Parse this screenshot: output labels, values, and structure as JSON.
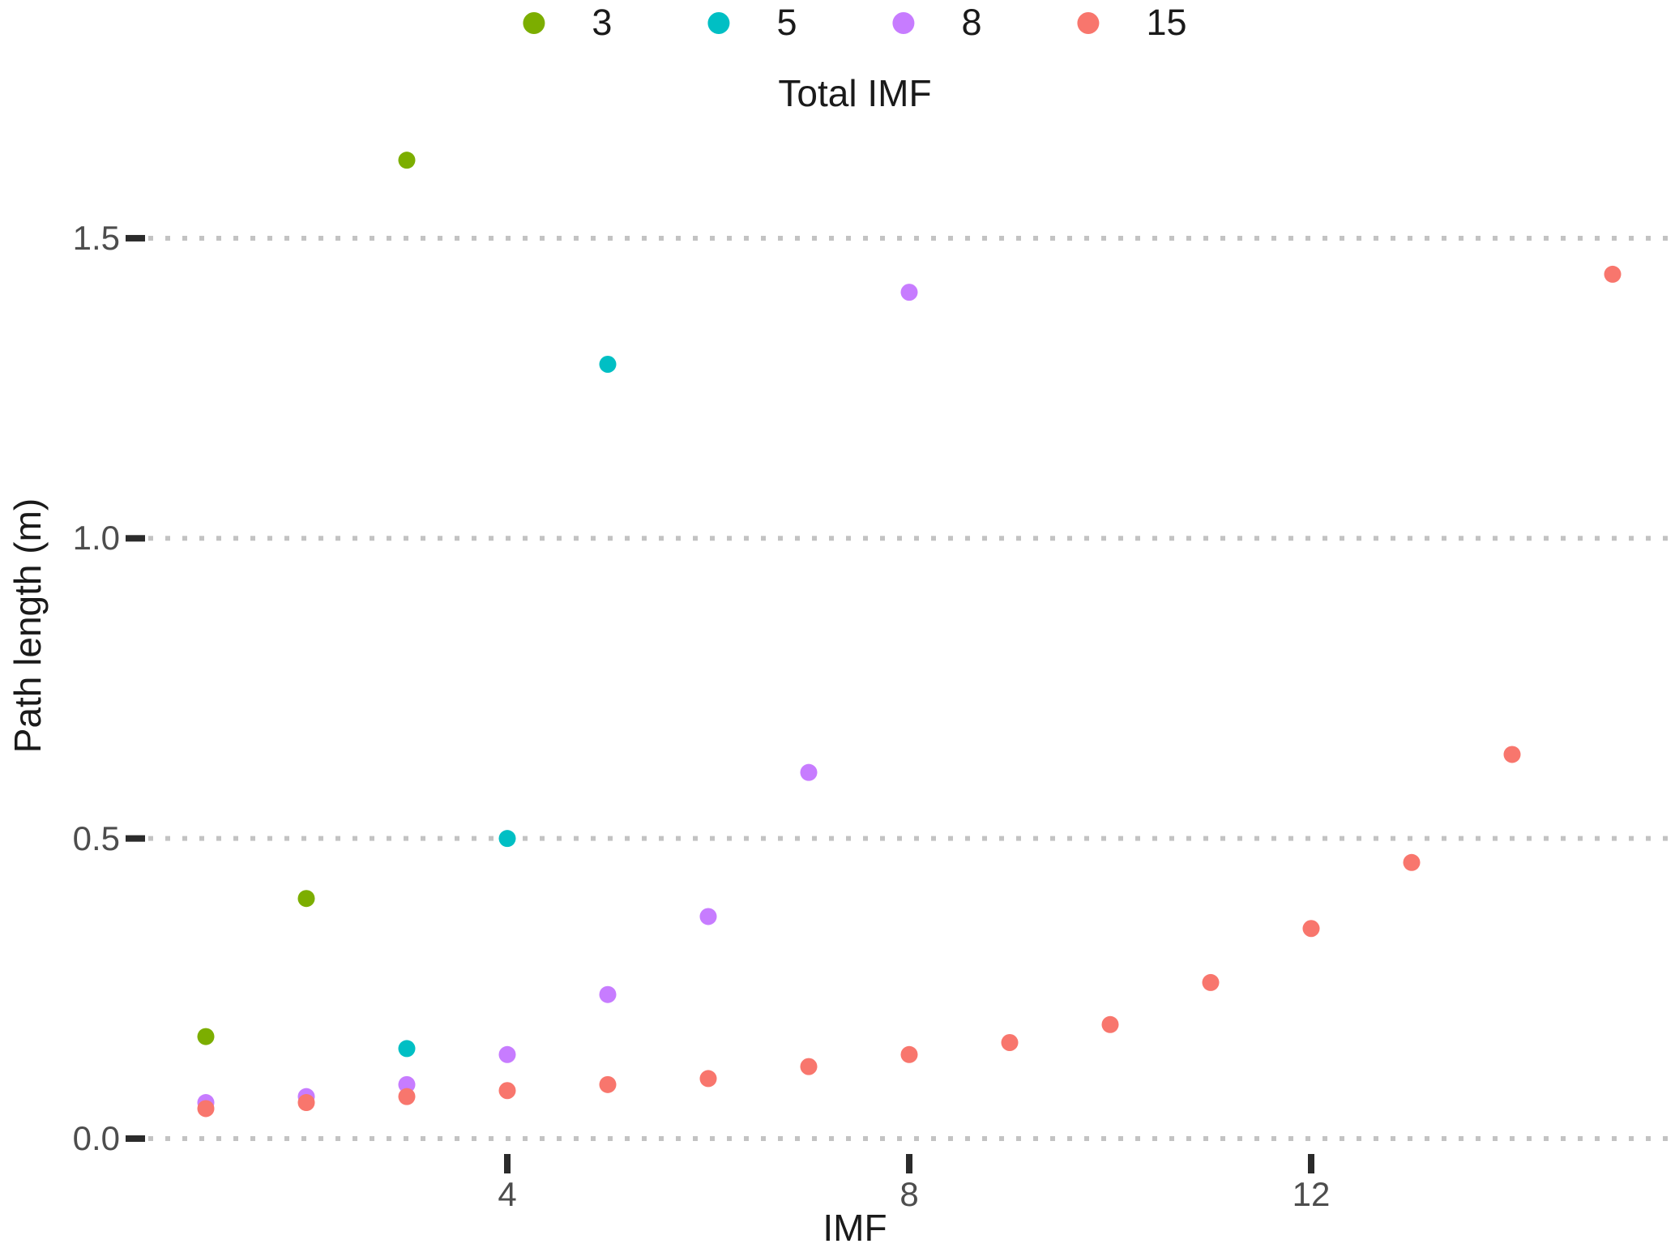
{
  "chart_data": {
    "type": "scatter",
    "legend_title": "Total IMF",
    "legend_position": "top-center",
    "xlabel": "IMF",
    "ylabel": "Path length (m)",
    "grid": "horizontal dotted gridlines at each y tick, no vertical gridlines, no panel border",
    "background": "#ffffff",
    "grid_color": "#c3c3c3",
    "tick_color": "#2b2b2b",
    "tick_label_color": "#4d4d4d",
    "axis_title_color": "#1a1a1a",
    "xlim": [
      0.4,
      15.6
    ],
    "ylim": [
      0.0,
      1.71
    ],
    "x_ticks": [
      {
        "label": "4",
        "value": 4
      },
      {
        "label": "8",
        "value": 8
      },
      {
        "label": "12",
        "value": 12
      }
    ],
    "y_ticks": [
      {
        "label": "0.0",
        "value": 0.0
      },
      {
        "label": "0.5",
        "value": 0.5
      },
      {
        "label": "1.0",
        "value": 1.0
      },
      {
        "label": "1.5",
        "value": 1.5
      }
    ],
    "series": [
      {
        "name": "3",
        "color": "#7CAE00",
        "points": [
          [
            1,
            0.17
          ],
          [
            2,
            0.4
          ],
          [
            3,
            1.63
          ]
        ]
      },
      {
        "name": "5",
        "color": "#00BFC4",
        "points": [
          [
            3,
            0.15
          ],
          [
            4,
            0.5
          ],
          [
            5,
            1.29
          ]
        ]
      },
      {
        "name": "8",
        "color": "#C77CFF",
        "points": [
          [
            1,
            0.06
          ],
          [
            2,
            0.07
          ],
          [
            3,
            0.09
          ],
          [
            4,
            0.14
          ],
          [
            5,
            0.24
          ],
          [
            6,
            0.37
          ],
          [
            7,
            0.61
          ],
          [
            8,
            1.41
          ]
        ]
      },
      {
        "name": "15",
        "color": "#F8766D",
        "points": [
          [
            1,
            0.05
          ],
          [
            2,
            0.06
          ],
          [
            3,
            0.07
          ],
          [
            4,
            0.08
          ],
          [
            5,
            0.09
          ],
          [
            6,
            0.1
          ],
          [
            7,
            0.12
          ],
          [
            8,
            0.14
          ],
          [
            9,
            0.16
          ],
          [
            10,
            0.19
          ],
          [
            11,
            0.26
          ],
          [
            12,
            0.35
          ],
          [
            13,
            0.46
          ],
          [
            14,
            0.64
          ],
          [
            15,
            1.44
          ]
        ]
      }
    ]
  }
}
